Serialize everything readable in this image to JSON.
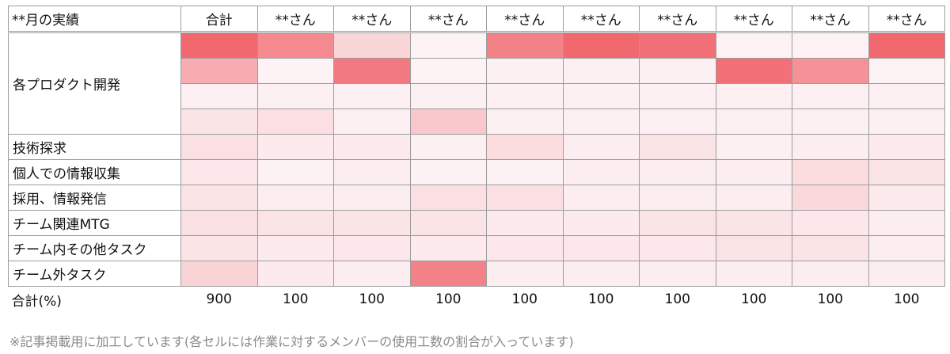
{
  "header": {
    "corner": "**月の実績",
    "columns": [
      "合計",
      "**さん",
      "**さん",
      "**さん",
      "**さん",
      "**さん",
      "**さん",
      "**さん",
      "**さん",
      "**さん"
    ]
  },
  "groups": [
    {
      "label": "各プロダクト開発",
      "rows": [
        [
          0.85,
          0.65,
          0.2,
          0.03,
          0.7,
          0.85,
          0.8,
          0.03,
          0.03,
          0.85
        ],
        [
          0.45,
          0.03,
          0.75,
          0.03,
          0.05,
          0.05,
          0.05,
          0.8,
          0.6,
          0.03
        ],
        [
          0.05,
          0.05,
          0.05,
          0.05,
          0.05,
          0.05,
          0.05,
          0.05,
          0.05,
          0.05
        ],
        [
          0.12,
          0.15,
          0.05,
          0.28,
          0.05,
          0.05,
          0.05,
          0.05,
          0.05,
          0.05
        ]
      ]
    },
    {
      "label": "技術探求",
      "rows": [
        [
          0.14,
          0.08,
          0.08,
          0.05,
          0.16,
          0.06,
          0.12,
          0.05,
          0.06,
          0.08
        ]
      ]
    },
    {
      "label": "個人での情報収集",
      "rows": [
        [
          0.1,
          0.04,
          0.06,
          0.04,
          0.04,
          0.06,
          0.06,
          0.06,
          0.16,
          0.12
        ]
      ]
    },
    {
      "label": "採用、情報発信",
      "rows": [
        [
          0.12,
          0.06,
          0.06,
          0.14,
          0.14,
          0.06,
          0.06,
          0.06,
          0.18,
          0.08
        ]
      ]
    },
    {
      "label": "チーム関連MTG",
      "rows": [
        [
          0.14,
          0.12,
          0.12,
          0.12,
          0.08,
          0.08,
          0.12,
          0.12,
          0.1,
          0.06
        ]
      ]
    },
    {
      "label": "チーム内その他タスク",
      "rows": [
        [
          0.12,
          0.08,
          0.1,
          0.08,
          0.1,
          0.1,
          0.1,
          0.12,
          0.12,
          0.06
        ]
      ]
    },
    {
      "label": "チーム外タスク",
      "rows": [
        [
          0.22,
          0.08,
          0.06,
          0.7,
          0.06,
          0.06,
          0.06,
          0.06,
          0.06,
          0.06
        ]
      ]
    }
  ],
  "totals": {
    "label": "合計(%)",
    "values": [
      "900",
      "100",
      "100",
      "100",
      "100",
      "100",
      "100",
      "100",
      "100",
      "100"
    ]
  },
  "footnote": "※記事掲載用に加工しています(各セルには作業に対するメンバーの使用工数の割合が入っています)",
  "colors": {
    "heat_high": "#ef4e57",
    "heat_low": "#fdf8fa",
    "grid": "#9c9c9c"
  }
}
